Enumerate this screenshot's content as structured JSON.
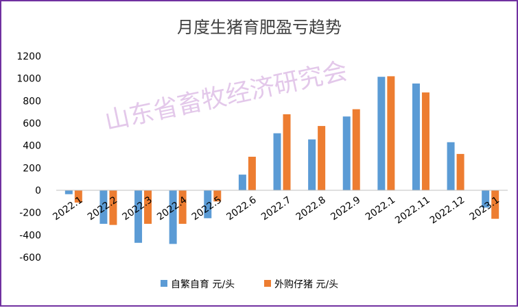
{
  "chart_data": {
    "type": "bar",
    "title": "月度生猪育肥盈亏趋势",
    "watermark": "山东省畜牧经济研究会",
    "categories": [
      "2022.1",
      "2022.2",
      "2022.3",
      "2022.4",
      "2022.5",
      "2022.6",
      "2022.7",
      "2022.8",
      "2022.9",
      "2022.1",
      "2022.11",
      "2022.12",
      "2023.1"
    ],
    "series": [
      {
        "name": "自繁自育 元/头",
        "color": "#5b9bd5",
        "values": [
          -35,
          -300,
          -470,
          -480,
          -250,
          140,
          510,
          455,
          660,
          1015,
          955,
          430,
          -155
        ]
      },
      {
        "name": "外购仔猪 元/头",
        "color": "#ed7d31",
        "values": [
          -110,
          -310,
          -300,
          -300,
          -100,
          300,
          680,
          575,
          725,
          1020,
          875,
          325,
          -255
        ]
      }
    ],
    "yticks": [
      -600,
      -400,
      -200,
      0,
      200,
      400,
      600,
      800,
      1000,
      1200
    ],
    "ylim": [
      -600,
      1200
    ],
    "grid": false,
    "legend": "bottom",
    "frame_color": "#7030a0",
    "watermark_color": "#e3c8ea"
  }
}
